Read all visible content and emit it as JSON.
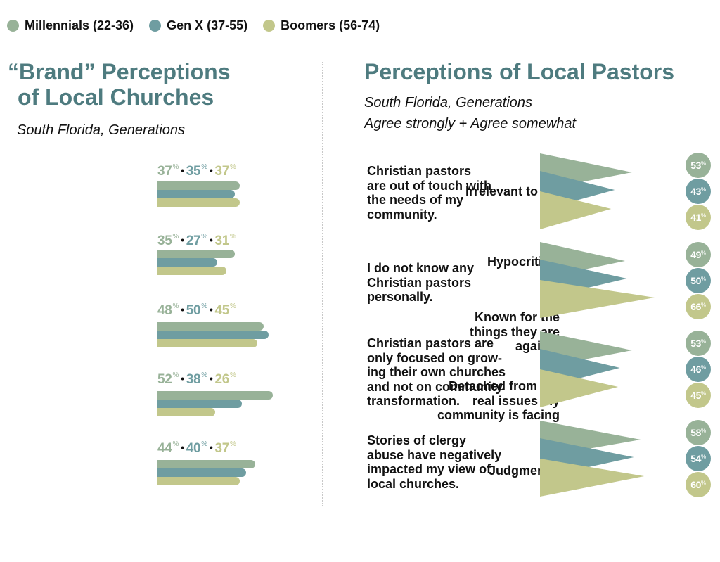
{
  "colors": {
    "millennials": "#98b298",
    "genx": "#6f9da1",
    "boomers": "#c2c78b",
    "title": "#4e7b7f"
  },
  "legend": [
    {
      "label": "Millennials (22-36)",
      "color": "#98b298"
    },
    {
      "label": "Gen X (37-55)",
      "color": "#6f9da1"
    },
    {
      "label": "Boomers (56-74)",
      "color": "#c2c78b"
    }
  ],
  "left": {
    "title_line1": "“Brand” Perceptions",
    "title_line2": "of Local Churches",
    "subtitle": "South Florida, Generations"
  },
  "right": {
    "title": "Perceptions of Local Pastors",
    "subtitle_line1": "South Florida, Generations",
    "subtitle_line2": "Agree strongly + Agree somewhat"
  },
  "pct_symbol": "%",
  "chart_data": [
    {
      "type": "bar",
      "orientation": "horizontal",
      "title": "“Brand” Perceptions of Local Churches",
      "subtitle": "South Florida, Generations",
      "categories": [
        "Irrelevant to me",
        "Hypocritical",
        "Known for the things they are against",
        "Detached from the real issues my community is facing",
        "Judgmental"
      ],
      "series": [
        {
          "name": "Millennials (22-36)",
          "color": "#98b298",
          "values": [
            37,
            35,
            48,
            52,
            44
          ]
        },
        {
          "name": "Gen X (37-55)",
          "color": "#6f9da1",
          "values": [
            35,
            27,
            50,
            38,
            40
          ]
        },
        {
          "name": "Boomers (56-74)",
          "color": "#c2c78b",
          "values": [
            37,
            31,
            45,
            26,
            37
          ]
        }
      ],
      "unit": "%",
      "legend_position": "top",
      "grid": false
    },
    {
      "type": "bar",
      "orientation": "horizontal",
      "style": "triangle",
      "title": "Perceptions of Local Pastors",
      "subtitle": "South Florida, Generations — Agree strongly + Agree somewhat",
      "categories": [
        "Christian pastors are out of touch with the needs of my community.",
        "I do not know any Christian pastors personally.",
        "Christian pastors are only focused on growing their own churches and not on community transformation.",
        "Stories of clergy abuse have negatively impacted my view of local churches."
      ],
      "series": [
        {
          "name": "Millennials (22-36)",
          "color": "#98b298",
          "values": [
            53,
            49,
            53,
            58
          ]
        },
        {
          "name": "Gen X (37-55)",
          "color": "#6f9da1",
          "values": [
            43,
            50,
            46,
            54
          ]
        },
        {
          "name": "Boomers (56-74)",
          "color": "#c2c78b",
          "values": [
            41,
            66,
            45,
            60
          ]
        }
      ],
      "unit": "%",
      "legend_position": "top",
      "grid": false
    }
  ],
  "left_rows": [
    {
      "label": "Irrelevant to me",
      "m": "37",
      "g": "35",
      "b": "37"
    },
    {
      "label": "Hypocritical",
      "m": "35",
      "g": "27",
      "b": "31"
    },
    {
      "label": "Known for the\nthings they are\nagainst",
      "m": "48",
      "g": "50",
      "b": "45"
    },
    {
      "label": "Detached from the\nreal issues my\ncommunity is facing",
      "m": "52",
      "g": "38",
      "b": "26"
    },
    {
      "label": "Judgmental",
      "m": "44",
      "g": "40",
      "b": "37"
    }
  ],
  "right_rows": [
    {
      "label": "Christian pastors\nare out of touch with\nthe needs of my\ncommunity.",
      "m": "53",
      "g": "43",
      "b": "41"
    },
    {
      "label": "I do not know any\nChristian pastors\npersonally.",
      "m": "49",
      "g": "50",
      "b": "66"
    },
    {
      "label": "Christian pastors are\nonly focused on grow-\ning their own churches\nand not on community\ntransformation.",
      "m": "53",
      "g": "46",
      "b": "45"
    },
    {
      "label": "Stories of clergy\nabuse have negatively\nimpacted my view of\nlocal churches.",
      "m": "58",
      "g": "54",
      "b": "60"
    }
  ]
}
